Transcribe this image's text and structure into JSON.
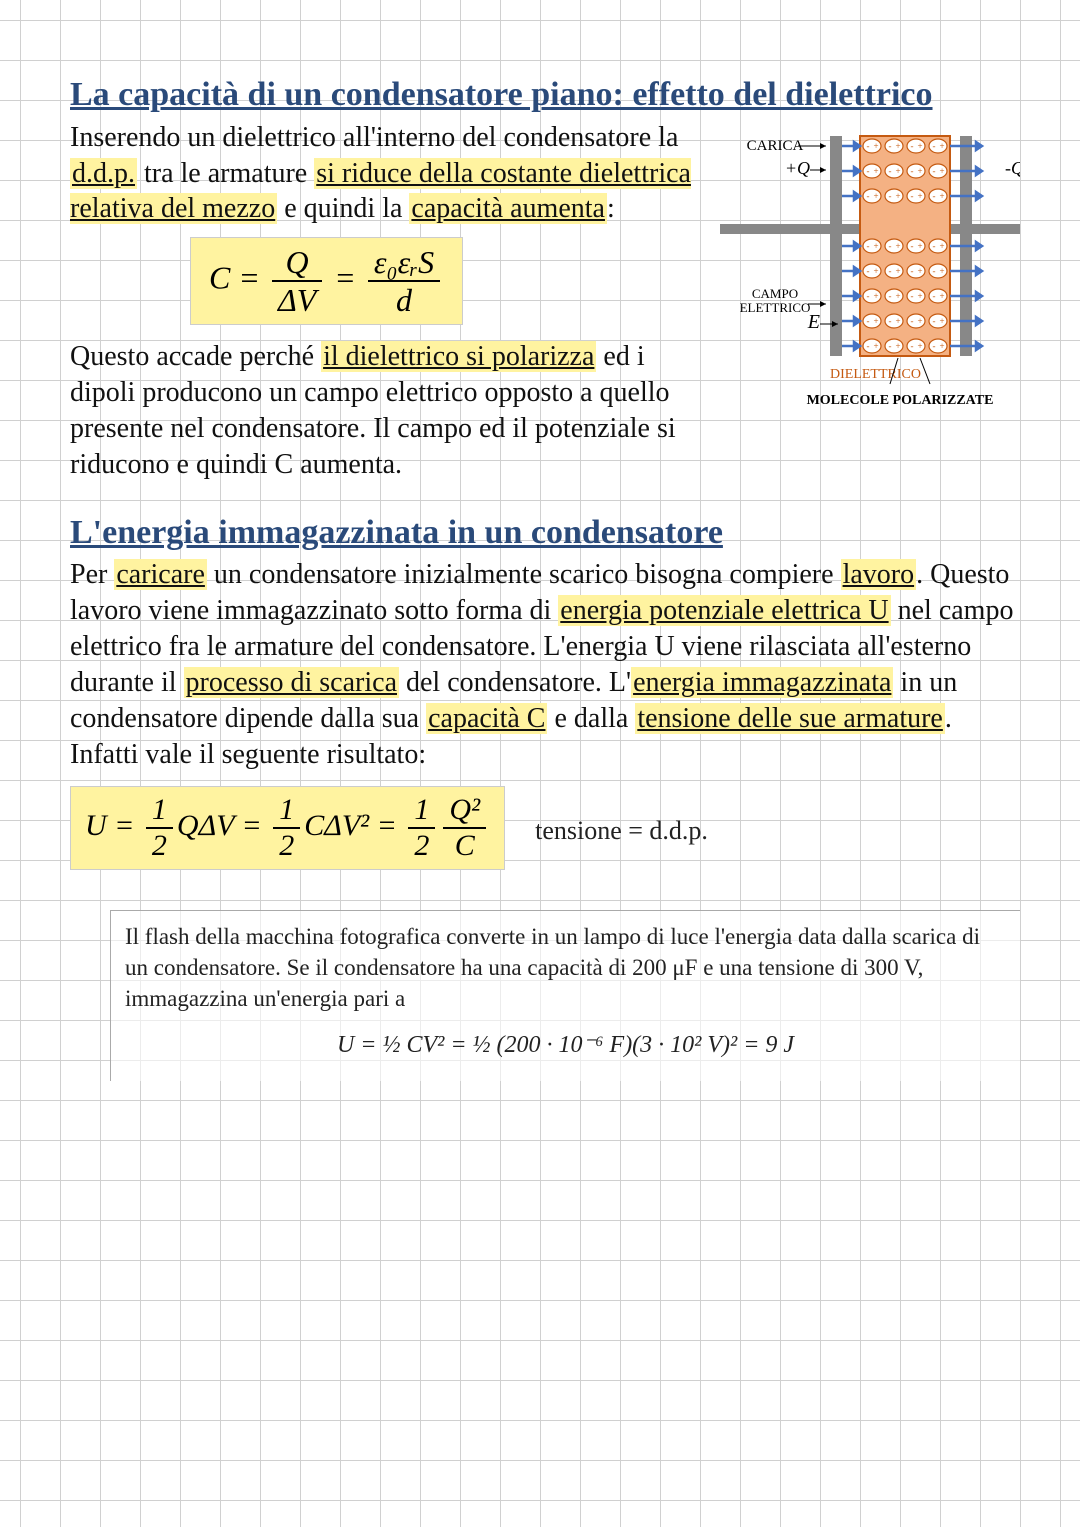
{
  "section1": {
    "heading": "La capacità di un condensatore piano: effetto del dielettrico",
    "para1_pre": "Inserendo un dielettrico all'interno del condensatore la ",
    "para1_hl1": "d.d.p.",
    "para1_mid1": " tra le armature ",
    "para1_hl2": "si riduce della costante dielettrica relativa del mezzo",
    "para1_mid2": " e quindi la ",
    "para1_hl3": "capacità aumenta",
    "para1_end": ":",
    "formula": {
      "lhs": "C",
      "eq": "=",
      "f1_num": "Q",
      "f1_den": "ΔV",
      "f2_num": "ε₀εᵣS",
      "f2_den": "d"
    },
    "para2_pre": "Questo accade perché ",
    "para2_hl1": "il dielettrico si polarizza",
    "para2_rest": " ed i dipoli producono un campo elettrico opposto a quello presente nel condensatore. Il campo ed il potenziale si riducono e quindi C aumenta."
  },
  "diagram": {
    "label_carica": "CARICA",
    "label_plusQ": "+Q",
    "label_minusQ": "-Q",
    "label_campo": "CAMPO ELETTRICO",
    "label_E": "E",
    "label_dielettrico": "DIELETTRICO",
    "label_molecole": "MOLECOLE POLARIZZATE",
    "colors": {
      "plate": "#888888",
      "dielectric_fill": "#f4b183",
      "dielectric_border": "#c55a11",
      "arrow": "#4472c4",
      "neg_fill": "#ffffff",
      "neg_stroke": "#c55a11",
      "pos_fill": "#ffffff",
      "text_orange": "#c55a11",
      "text_black": "#000000"
    }
  },
  "section2": {
    "heading": "L'energia immagazzinata in un condensatore",
    "p_pre": "Per ",
    "p_hl1": "caricare",
    "p_t1": " un condensatore inizialmente scarico bisogna compiere ",
    "p_hl2": "lavoro",
    "p_t2": ". Questo lavoro viene immagazzinato sotto forma di ",
    "p_hl3": "energia potenziale elettrica U",
    "p_t3": " nel campo elettrico fra le armature del condensatore. L'energia U viene rilasciata all'esterno durante il ",
    "p_hl4": "processo di scarica",
    "p_t4": " del condensatore. L'",
    "p_hl5": "energia immagazzinata",
    "p_t5": " in un condensatore dipende dalla sua ",
    "p_hl6": "capacità C",
    "p_t6": " e dalla ",
    "p_hl7": "tensione delle sue armature",
    "p_t7": ". Infatti vale il seguente risultato:",
    "formula2": {
      "lhs": "U",
      "eq": "=",
      "half": "1",
      "two": "2",
      "t1": "QΔV",
      "t2": "CΔV²",
      "t3_num": "Q²",
      "t3_den": "C"
    },
    "note": "tensione = d.d.p."
  },
  "example": {
    "text": "Il flash della macchina fotografica converte in un lampo di luce l'energia data dalla scarica di un condensatore. Se il condensatore ha una capacità di 200 μF e una tensione di 300 V, immagazzina un'energia pari a",
    "formula_text": "U = ½ CV² = ½ (200 · 10⁻⁶ F)(3 · 10² V)² = 9 J"
  }
}
